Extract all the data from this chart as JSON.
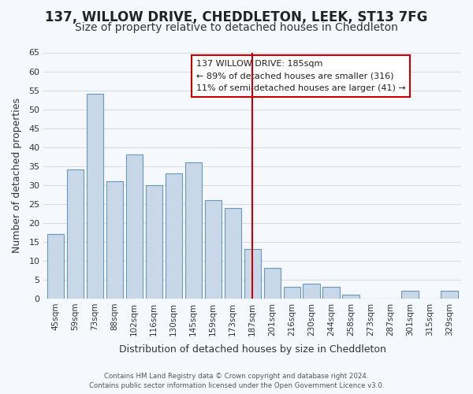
{
  "title": "137, WILLOW DRIVE, CHEDDLETON, LEEK, ST13 7FG",
  "subtitle": "Size of property relative to detached houses in Cheddleton",
  "xlabel": "Distribution of detached houses by size in Cheddleton",
  "ylabel": "Number of detached properties",
  "footer_lines": [
    "Contains HM Land Registry data © Crown copyright and database right 2024.",
    "Contains public sector information licensed under the Open Government Licence v3.0."
  ],
  "bins": [
    "45sqm",
    "59sqm",
    "73sqm",
    "88sqm",
    "102sqm",
    "116sqm",
    "130sqm",
    "145sqm",
    "159sqm",
    "173sqm",
    "187sqm",
    "201sqm",
    "216sqm",
    "230sqm",
    "244sqm",
    "258sqm",
    "273sqm",
    "287sqm",
    "301sqm",
    "315sqm",
    "329sqm"
  ],
  "values": [
    17,
    34,
    54,
    31,
    38,
    30,
    33,
    36,
    26,
    24,
    13,
    8,
    3,
    4,
    3,
    1,
    0,
    0,
    2,
    0,
    2
  ],
  "bar_color": "#c8d8e8",
  "bar_edge_color": "#6699bb",
  "vline_color": "#cc0000",
  "vline_x": 10.5,
  "annotation_title": "137 WILLOW DRIVE: 185sqm",
  "annotation_line1": "← 89% of detached houses are smaller (316)",
  "annotation_line2": "11% of semi-detached houses are larger (41) →",
  "annotation_box_color": "#ffffff",
  "annotation_box_edge": "#cc0000",
  "ylim": [
    0,
    65
  ],
  "yticks": [
    0,
    5,
    10,
    15,
    20,
    25,
    30,
    35,
    40,
    45,
    50,
    55,
    60,
    65
  ],
  "grid_color": "#dddddd",
  "bg_color": "#f5f8fd",
  "title_fontsize": 12,
  "subtitle_fontsize": 10
}
